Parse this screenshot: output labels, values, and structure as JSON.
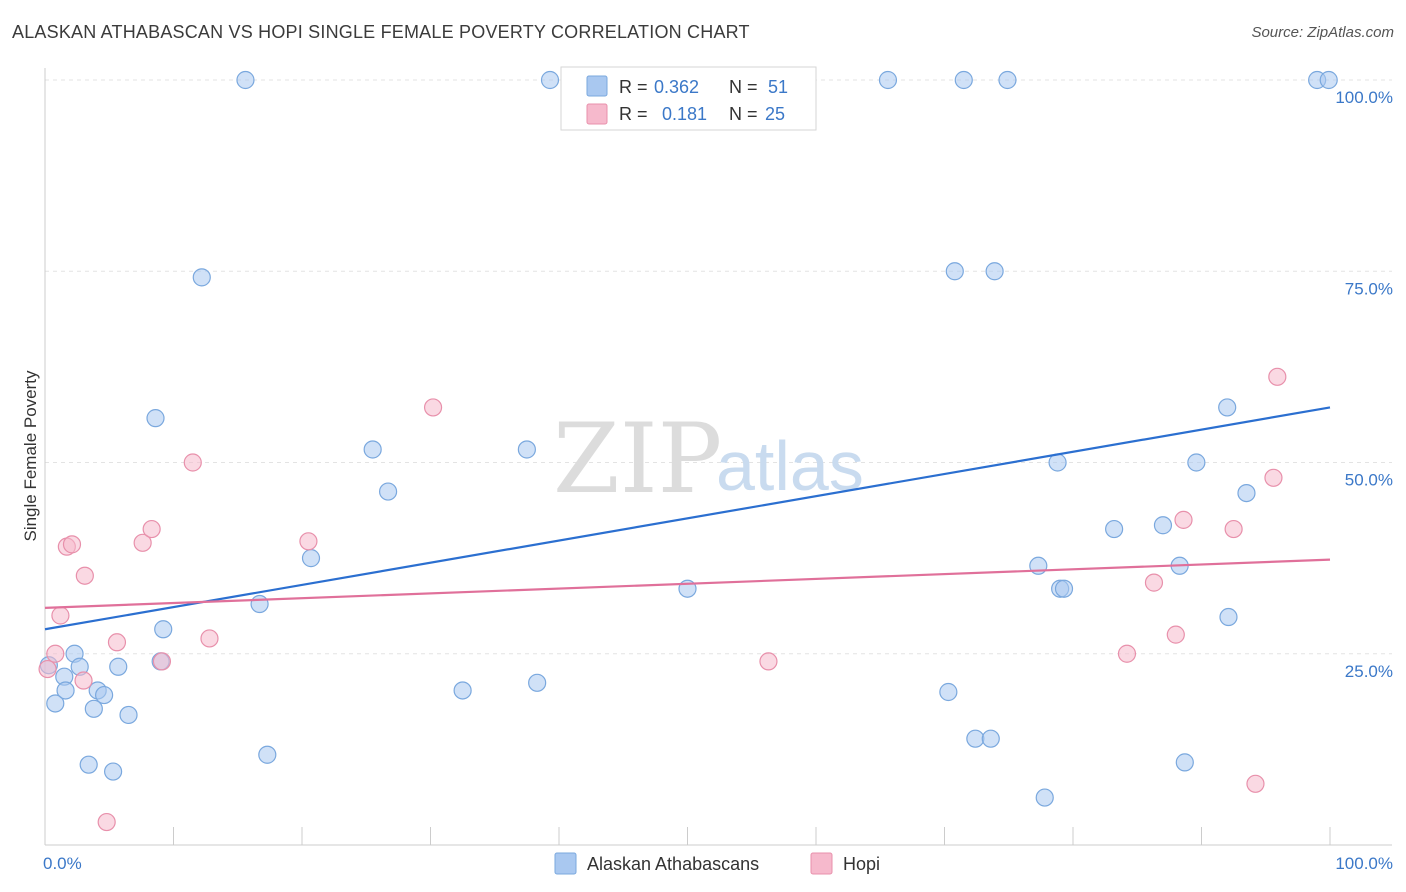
{
  "title": "ALASKAN ATHABASCAN VS HOPI SINGLE FEMALE POVERTY CORRELATION CHART",
  "source": "Source: ZipAtlas.com",
  "watermark": {
    "zip": "ZIP",
    "atlas": "atlas"
  },
  "legend_top": {
    "rows": [
      {
        "r_label": "R =",
        "r_value": "0.362",
        "n_label": "N =",
        "n_value": "51",
        "color": "#a9c8f0"
      },
      {
        "r_label": "R =",
        "r_value": "0.181",
        "n_label": "N =",
        "n_value": "25",
        "color": "#f6b9cc"
      }
    ]
  },
  "legend_bottom": [
    {
      "label": "Alaskan Athabascans",
      "color": "#a9c8f0"
    },
    {
      "label": "Hopi",
      "color": "#f6b9cc"
    }
  ],
  "chart_data": {
    "type": "scatter",
    "title": "ALASKAN ATHABASCAN VS HOPI SINGLE FEMALE POVERTY CORRELATION CHART",
    "xlabel": "",
    "ylabel": "Single Female Poverty",
    "xlim": [
      0,
      100
    ],
    "ylim": [
      0,
      102
    ],
    "x_tick_labels": [
      "0.0%",
      "100.0%"
    ],
    "y_ticks": [
      25,
      50,
      75,
      100
    ],
    "y_tick_labels": [
      "25.0%",
      "50.0%",
      "75.0%",
      "100.0%"
    ],
    "series": [
      {
        "name": "Alaskan Athabascans",
        "color": "#a9c8f0",
        "stroke": "#7aa8de",
        "points": [
          [
            0.3,
            23.5
          ],
          [
            0.8,
            18.5
          ],
          [
            1.5,
            22.0
          ],
          [
            1.6,
            20.2
          ],
          [
            2.3,
            25.0
          ],
          [
            2.7,
            23.3
          ],
          [
            3.4,
            10.5
          ],
          [
            3.8,
            17.8
          ],
          [
            4.1,
            20.2
          ],
          [
            4.6,
            19.6
          ],
          [
            5.3,
            9.6
          ],
          [
            5.7,
            23.3
          ],
          [
            6.5,
            17.0
          ],
          [
            8.6,
            55.8
          ],
          [
            9.0,
            24.0
          ],
          [
            9.2,
            28.2
          ],
          [
            12.2,
            74.2
          ],
          [
            15.6,
            100.0
          ],
          [
            16.7,
            31.5
          ],
          [
            17.3,
            11.8
          ],
          [
            20.7,
            37.5
          ],
          [
            25.5,
            51.7
          ],
          [
            26.7,
            46.2
          ],
          [
            32.5,
            20.2
          ],
          [
            37.5,
            51.7
          ],
          [
            38.3,
            21.2
          ],
          [
            39.3,
            100.0
          ],
          [
            50.0,
            33.5
          ],
          [
            65.6,
            100.0
          ],
          [
            70.3,
            20.0
          ],
          [
            70.8,
            75.0
          ],
          [
            71.5,
            100.0
          ],
          [
            72.4,
            13.9
          ],
          [
            73.6,
            13.9
          ],
          [
            73.9,
            75.0
          ],
          [
            74.9,
            100.0
          ],
          [
            77.3,
            36.5
          ],
          [
            77.8,
            6.2
          ],
          [
            79.0,
            33.5
          ],
          [
            79.3,
            33.5
          ],
          [
            78.8,
            50.0
          ],
          [
            83.2,
            41.3
          ],
          [
            87.0,
            41.8
          ],
          [
            88.3,
            36.5
          ],
          [
            88.7,
            10.8
          ],
          [
            89.6,
            50.0
          ],
          [
            92.0,
            57.2
          ],
          [
            93.5,
            46.0
          ],
          [
            92.1,
            29.8
          ],
          [
            99.0,
            100.0
          ],
          [
            99.9,
            100.0
          ]
        ]
      },
      {
        "name": "Hopi",
        "color": "#f6b9cc",
        "stroke": "#e890ab",
        "points": [
          [
            0.2,
            23.0
          ],
          [
            0.8,
            25.0
          ],
          [
            1.2,
            30.0
          ],
          [
            1.7,
            39.0
          ],
          [
            2.1,
            39.3
          ],
          [
            3.0,
            21.5
          ],
          [
            3.1,
            35.2
          ],
          [
            5.6,
            26.5
          ],
          [
            7.6,
            39.5
          ],
          [
            8.3,
            41.3
          ],
          [
            9.1,
            24.0
          ],
          [
            11.5,
            50.0
          ],
          [
            12.8,
            27.0
          ],
          [
            20.5,
            39.7
          ],
          [
            30.2,
            57.2
          ],
          [
            56.3,
            24.0
          ],
          [
            84.2,
            25.0
          ],
          [
            86.3,
            34.3
          ],
          [
            88.0,
            27.5
          ],
          [
            88.6,
            42.5
          ],
          [
            92.5,
            41.3
          ],
          [
            94.2,
            8.0
          ],
          [
            95.6,
            48.0
          ],
          [
            95.9,
            61.2
          ],
          [
            4.8,
            3.0
          ]
        ]
      }
    ],
    "trendlines": [
      {
        "series": "Alaskan Athabascans",
        "color": "#2b6fd0",
        "x": [
          0,
          100
        ],
        "y": [
          28.2,
          57.2
        ]
      },
      {
        "series": "Hopi",
        "color": "#e0709a",
        "x": [
          0,
          100
        ],
        "y": [
          31.0,
          37.3
        ]
      }
    ]
  }
}
